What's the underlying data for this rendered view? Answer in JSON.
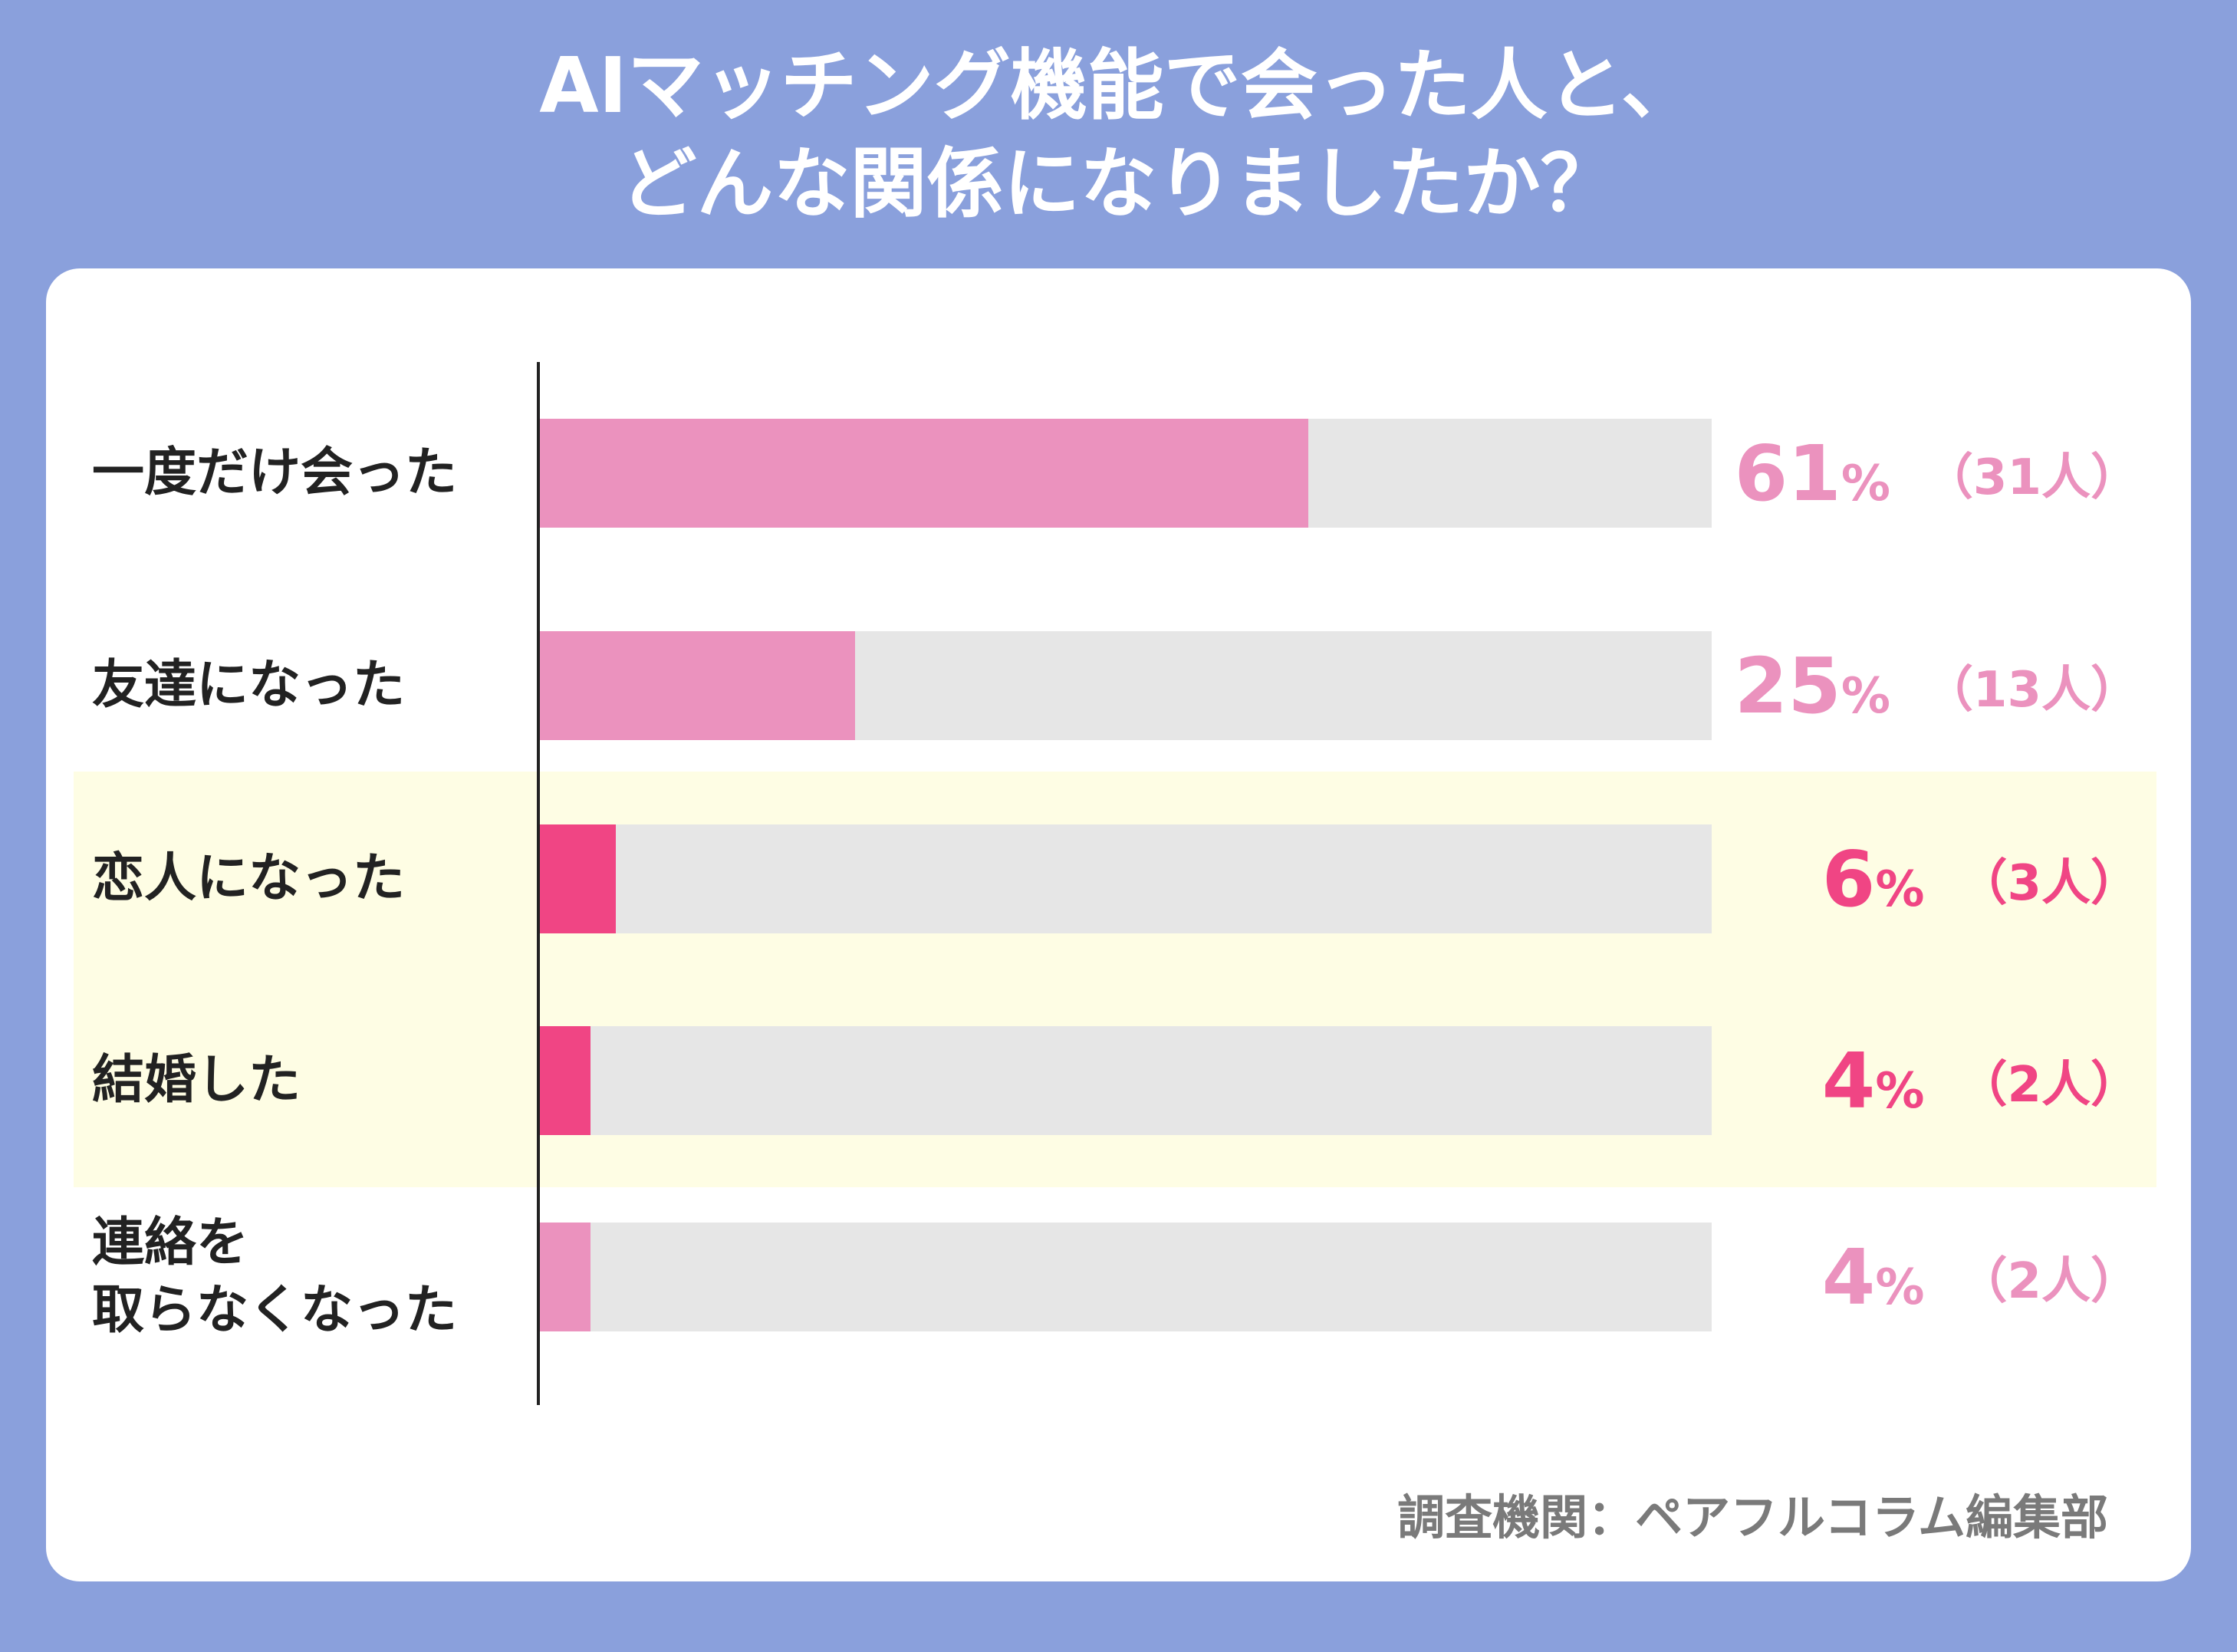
{
  "title": {
    "line1": "AIマッチング機能で会った人と、",
    "line2": "どんな関係になりましたか？"
  },
  "source": "調査機関：ペアフルコラム編集部",
  "colors": {
    "background": "#8aa0dc",
    "bar_light": "#eb92be",
    "bar_strong": "#f04584",
    "track": "#e6e6e6",
    "highlight": "#fefde4"
  },
  "chart_data": {
    "type": "bar",
    "orientation": "horizontal",
    "categories": [
      "一度だけ会った",
      "友達になった",
      "恋人になった",
      "結婚した",
      "連絡を取らなくなった"
    ],
    "category_lines": [
      [
        "一度だけ会った"
      ],
      [
        "友達になった"
      ],
      [
        "恋人になった"
      ],
      [
        "結婚した"
      ],
      [
        "連絡を",
        "取らなくなった"
      ]
    ],
    "values": [
      61,
      25,
      6,
      4,
      4
    ],
    "value_labels": [
      "61",
      "25",
      "6",
      "4",
      "4"
    ],
    "unit": "%",
    "counts": [
      "（31人）",
      "（13人）",
      "（3人）",
      "（2人）",
      "（2人）"
    ],
    "highlighted": [
      false,
      false,
      true,
      true,
      false
    ],
    "xlim": [
      0,
      100
    ]
  }
}
